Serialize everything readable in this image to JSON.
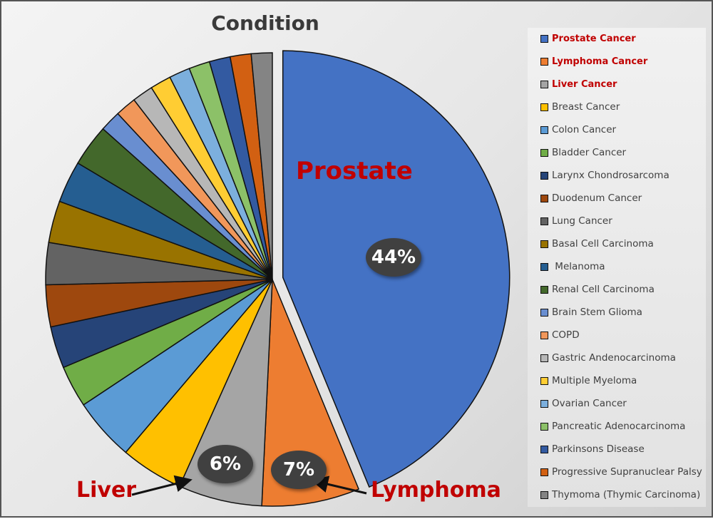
{
  "chart_data": {
    "type": "pie",
    "title": "Condition",
    "legend_position": "right",
    "unit": "percent",
    "slices": [
      {
        "label": "Prostate Cancer",
        "value": 44,
        "color": "#4472c4",
        "highlight": true,
        "exploded": true,
        "data_label": "44%",
        "callout": "Prostate"
      },
      {
        "label": "Lymphoma Cancer",
        "value": 7,
        "color": "#ed7d31",
        "highlight": true,
        "data_label": "7%",
        "callout": "Lymphoma"
      },
      {
        "label": "Liver Cancer",
        "value": 6,
        "color": "#a5a5a5",
        "highlight": true,
        "data_label": "6%",
        "callout": "Liver"
      },
      {
        "label": "Breast Cancer",
        "value": 4.5,
        "color": "#ffc000"
      },
      {
        "label": "Colon Cancer",
        "value": 4.5,
        "color": "#5b9bd5"
      },
      {
        "label": "Bladder Cancer",
        "value": 3,
        "color": "#70ad47"
      },
      {
        "label": "Larynx Chondrosarcoma",
        "value": 3,
        "color": "#264478"
      },
      {
        "label": "Duodenum Cancer",
        "value": 3,
        "color": "#9e480e"
      },
      {
        "label": "Lung Cancer",
        "value": 3,
        "color": "#636363"
      },
      {
        "label": "Basal Cell Carcinoma",
        "value": 3,
        "color": "#997300"
      },
      {
        "label": " Melanoma",
        "value": 3,
        "color": "#255e91"
      },
      {
        "label": "Renal Cell Carcinoma",
        "value": 3,
        "color": "#43682b"
      },
      {
        "label": "Brain Stem Glioma",
        "value": 1.5,
        "color": "#698ed0"
      },
      {
        "label": "COPD",
        "value": 1.5,
        "color": "#f1975a"
      },
      {
        "label": "Gastric Andenocarcinoma",
        "value": 1.5,
        "color": "#b7b7b7"
      },
      {
        "label": "Multiple Myeloma",
        "value": 1.5,
        "color": "#ffcd33"
      },
      {
        "label": "Ovarian Cancer",
        "value": 1.5,
        "color": "#7cafdd"
      },
      {
        "label": "Pancreatic Adenocarcinoma",
        "value": 1.5,
        "color": "#8cc168"
      },
      {
        "label": "Parkinsons Disease",
        "value": 1.5,
        "color": "#335aa1"
      },
      {
        "label": "Progressive Supranuclear Palsy",
        "value": 1.5,
        "color": "#d26012"
      },
      {
        "label": "Thymoma (Thymic Carcinoma)",
        "value": 1.5,
        "color": "#848484"
      }
    ]
  }
}
